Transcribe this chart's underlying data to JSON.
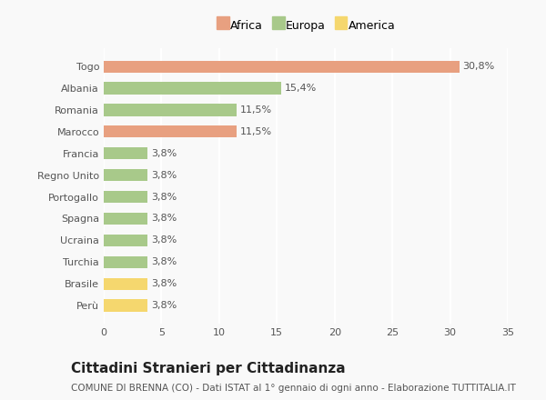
{
  "categories": [
    "Perù",
    "Brasile",
    "Turchia",
    "Ucraina",
    "Spagna",
    "Portogallo",
    "Regno Unito",
    "Francia",
    "Marocco",
    "Romania",
    "Albania",
    "Togo"
  ],
  "values": [
    3.8,
    3.8,
    3.8,
    3.8,
    3.8,
    3.8,
    3.8,
    3.8,
    11.5,
    11.5,
    15.4,
    30.8
  ],
  "colors": [
    "#f5d76e",
    "#f5d76e",
    "#a8c98a",
    "#a8c98a",
    "#a8c98a",
    "#a8c98a",
    "#a8c98a",
    "#a8c98a",
    "#e8a080",
    "#a8c98a",
    "#a8c98a",
    "#e8a080"
  ],
  "labels": [
    "3,8%",
    "3,8%",
    "3,8%",
    "3,8%",
    "3,8%",
    "3,8%",
    "3,8%",
    "3,8%",
    "11,5%",
    "11,5%",
    "15,4%",
    "30,8%"
  ],
  "xlim": [
    0,
    35
  ],
  "xticks": [
    0,
    5,
    10,
    15,
    20,
    25,
    30,
    35
  ],
  "legend_items": [
    {
      "label": "Africa",
      "color": "#e8a080"
    },
    {
      "label": "Europa",
      "color": "#a8c98a"
    },
    {
      "label": "America",
      "color": "#f5d76e"
    }
  ],
  "title": "Cittadini Stranieri per Cittadinanza",
  "subtitle": "COMUNE DI BRENNA (CO) - Dati ISTAT al 1° gennaio di ogni anno - Elaborazione TUTTITALIA.IT",
  "background_color": "#f9f9f9",
  "grid_color": "#ffffff",
  "bar_height": 0.55,
  "label_fontsize": 8,
  "tick_fontsize": 8,
  "title_fontsize": 11,
  "subtitle_fontsize": 7.5,
  "legend_fontsize": 9
}
